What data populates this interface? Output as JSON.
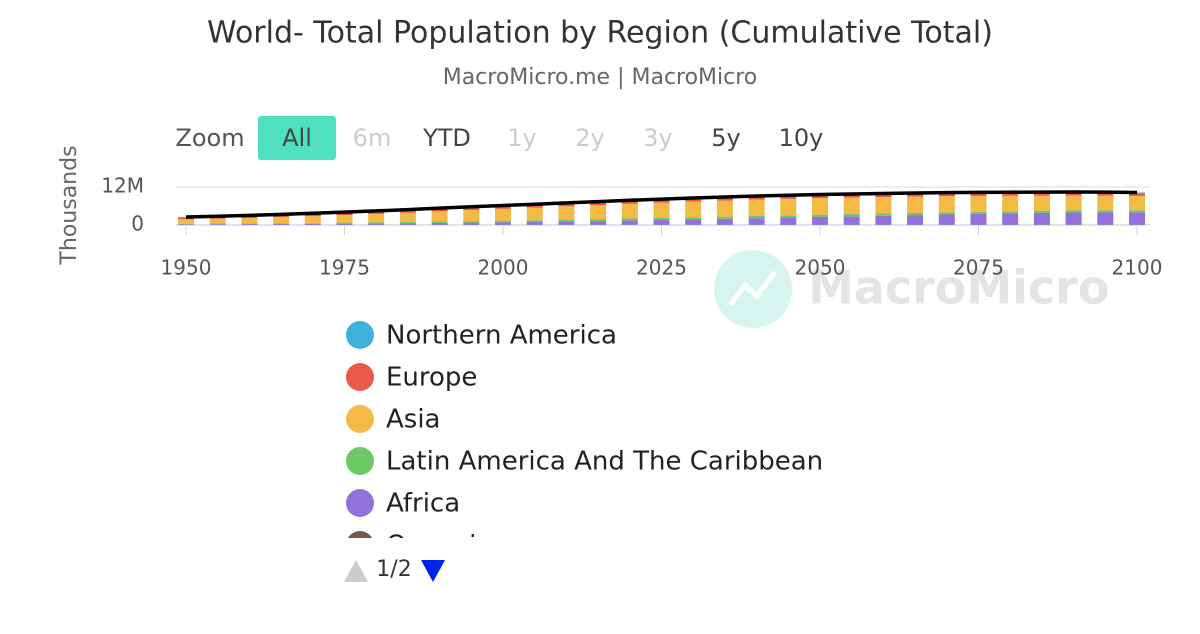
{
  "chart_data": {
    "type": "stacked-bar",
    "title": "World- Total Population by Region (Cumulative Total)",
    "subtitle": "MacroMicro.me | MacroMicro",
    "y_label": "Thousands",
    "watermark": "MacroMicro",
    "range_selector": {
      "label": "Zoom",
      "buttons": [
        {
          "text": "All",
          "state": "active"
        },
        {
          "text": "6m",
          "state": "disabled"
        },
        {
          "text": "YTD",
          "state": "enabled"
        },
        {
          "text": "1y",
          "state": "disabled"
        },
        {
          "text": "2y",
          "state": "disabled"
        },
        {
          "text": "3y",
          "state": "disabled"
        },
        {
          "text": "5y",
          "state": "enabled"
        },
        {
          "text": "10y",
          "state": "enabled"
        }
      ]
    },
    "legend_page": "1/2",
    "x": [
      1950,
      1955,
      1960,
      1965,
      1970,
      1975,
      1980,
      1985,
      1990,
      1995,
      2000,
      2005,
      2010,
      2015,
      2020,
      2025,
      2030,
      2035,
      2040,
      2045,
      2050,
      2055,
      2060,
      2065,
      2070,
      2075,
      2080,
      2085,
      2090,
      2095,
      2100
    ],
    "xlim": [
      1950,
      2100
    ],
    "xticks": [
      1950,
      1975,
      2000,
      2025,
      2050,
      2075,
      2100
    ],
    "ylim": [
      0,
      12000000
    ],
    "yticks": [
      0,
      {
        "value": 12000000,
        "label": "12M"
      }
    ],
    "grid": true,
    "series": [
      {
        "name": "Northern America",
        "color": "#3eb0dc",
        "values": [
          173000,
          187000,
          204000,
          219000,
          231000,
          243000,
          256000,
          270000,
          286000,
          304000,
          318000,
          335000,
          347000,
          359000,
          371000,
          383000,
          394000,
          403000,
          411000,
          418000,
          425000,
          431000,
          437000,
          443000,
          449000,
          454000,
          459000,
          464000,
          468000,
          472000,
          476000
        ]
      },
      {
        "name": "Europe",
        "color": "#e8594a",
        "values": [
          550000,
          577000,
          605000,
          634000,
          657000,
          677000,
          694000,
          708000,
          721000,
          727000,
          726000,
          729000,
          736000,
          742000,
          746000,
          744000,
          740000,
          734000,
          728000,
          720000,
          711000,
          700000,
          690000,
          680000,
          670000,
          660000,
          650000,
          640000,
          632000,
          625000,
          618000
        ]
      },
      {
        "name": "Asia",
        "color": "#f5b945",
        "values": [
          1380000,
          1540000,
          1700000,
          1900000,
          2140000,
          2390000,
          2640000,
          2900000,
          3210000,
          3480000,
          3740000,
          3980000,
          4210000,
          4430000,
          4640000,
          4800000,
          4960000,
          5060000,
          5150000,
          5200000,
          5230000,
          5220000,
          5190000,
          5140000,
          5070000,
          4990000,
          4900000,
          4810000,
          4720000,
          4630000,
          4540000
        ]
      },
      {
        "name": "Latin America And The Caribbean",
        "color": "#6cc865",
        "values": [
          169000,
          193000,
          220000,
          251000,
          287000,
          325000,
          363000,
          404000,
          444000,
          485000,
          523000,
          560000,
          595000,
          626000,
          652000,
          670000,
          687000,
          700000,
          709000,
          715000,
          717000,
          716000,
          712000,
          707000,
          699000,
          690000,
          680000,
          669000,
          658000,
          647000,
          636000
        ]
      },
      {
        "name": "Africa",
        "color": "#9370db",
        "values": [
          228000,
          255000,
          285000,
          321000,
          366000,
          418000,
          480000,
          550000,
          635000,
          720000,
          818000,
          925000,
          1055000,
          1200000,
          1360000,
          1520000,
          1700000,
          1890000,
          2090000,
          2280000,
          2480000,
          2680000,
          2870000,
          3060000,
          3250000,
          3420000,
          3590000,
          3740000,
          3880000,
          3910000,
          3920000
        ]
      },
      {
        "name": "Oceania",
        "color": "#7b5a4b",
        "values": [
          13000,
          14000,
          16000,
          18000,
          20000,
          22000,
          23000,
          25000,
          27000,
          29000,
          31000,
          34000,
          37000,
          40000,
          43000,
          46000,
          49000,
          52000,
          55000,
          57000,
          60000,
          62000,
          65000,
          67000,
          70000,
          72000,
          73000,
          75000,
          76000,
          78000,
          79000
        ]
      },
      {
        "type": "line",
        "color": "#000000",
        "values": [
          2513000,
          2766000,
          3030000,
          3343000,
          3701000,
          4075000,
          4456000,
          4857000,
          5323000,
          5745000,
          6156000,
          6563000,
          6980000,
          7397000,
          7812000,
          8163000,
          8530000,
          8839000,
          9143000,
          9390000,
          9623000,
          9809000,
          9964000,
          10097000,
          10208000,
          10286000,
          10352000,
          10398000,
          10434000,
          10362000,
          10269000
        ]
      }
    ]
  }
}
